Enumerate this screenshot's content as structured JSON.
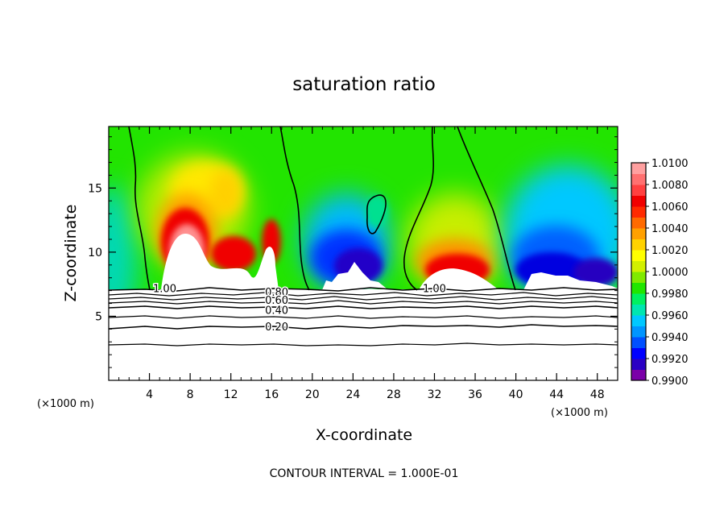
{
  "chart_data": {
    "type": "heatmap",
    "title": "saturation ratio",
    "xlabel": "X-coordinate",
    "ylabel": "Z-coordinate",
    "x_unit": "(×1000 m)",
    "y_unit": "(×1000 m)",
    "xlim": [
      0,
      50
    ],
    "ylim": [
      0,
      19.8
    ],
    "x_ticks": [
      4,
      8,
      12,
      16,
      20,
      24,
      28,
      32,
      36,
      40,
      44,
      48
    ],
    "y_ticks": [
      5,
      10,
      15
    ],
    "colorbar": {
      "min": 0.99,
      "max": 1.01,
      "tick_labels": [
        "1.0100",
        "1.0080",
        "1.0060",
        "1.0040",
        "1.0020",
        "1.0000",
        "0.9980",
        "0.9960",
        "0.9940",
        "0.9920",
        "0.9900"
      ],
      "colors": [
        "#7a00a8",
        "#2a00c4",
        "#0000ff",
        "#0050ff",
        "#0095ff",
        "#00c8ff",
        "#00e6b0",
        "#00f060",
        "#20e600",
        "#80ea00",
        "#d2f000",
        "#ffff00",
        "#ffd200",
        "#ffa000",
        "#ff6a00",
        "#ff2a00",
        "#f00000",
        "#ff4040",
        "#ff7070",
        "#ffa0a0"
      ]
    },
    "contours_in_cloud_free_layer": [
      {
        "label": "1.00",
        "x": 5.5,
        "z": 7.2
      },
      {
        "label": "0.80",
        "x": 16.5,
        "z": 6.9
      },
      {
        "label": "0.60",
        "x": 16.5,
        "z": 6.3
      },
      {
        "label": "0.40",
        "x": 16.5,
        "z": 5.5
      },
      {
        "label": "0.20",
        "x": 16.5,
        "z": 4.2
      },
      {
        "label": "1.00",
        "x": 32.0,
        "z": 7.2
      }
    ],
    "cloud_top_z": 7.2,
    "contour_interval_note": "CONTOUR INTERVAL = 1.000E-01"
  }
}
